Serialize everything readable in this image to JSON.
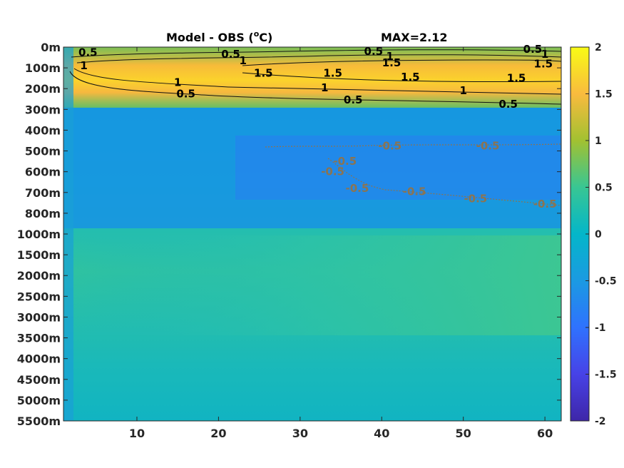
{
  "chart_data": {
    "type": "heatmap",
    "title": "Model - OBS (",
    "title_superscript": "o",
    "title_suffix": "C)",
    "max_label": "MAX=2.12",
    "colormap": "parula",
    "x": {
      "ticks": [
        10,
        20,
        30,
        40,
        50,
        60
      ],
      "range": [
        1,
        62
      ]
    },
    "y": {
      "tick_labels": [
        "0m",
        "100m",
        "200m",
        "300m",
        "400m",
        "500m",
        "600m",
        "700m",
        "800m",
        "1000m",
        "1500m",
        "2000m",
        "2500m",
        "3000m",
        "3500m",
        "4000m",
        "4500m",
        "5000m",
        "5500m"
      ],
      "direction": "down"
    },
    "colorbar": {
      "range": [
        -2,
        2
      ],
      "ticks": [
        "2",
        "1.5",
        "1",
        "0.5",
        "0",
        "-0.5",
        "-1",
        "-1.5",
        "-2"
      ]
    },
    "contour_labels_positive": [
      {
        "text": "0.5",
        "x": 4,
        "y": 0.25
      },
      {
        "text": "1",
        "x": 3.5,
        "y": 0.9
      },
      {
        "text": "0.5",
        "x": 21.5,
        "y": 0.35
      },
      {
        "text": "1",
        "x": 23,
        "y": 0.65
      },
      {
        "text": "1.5",
        "x": 25.5,
        "y": 1.25
      },
      {
        "text": "1",
        "x": 15,
        "y": 1.7
      },
      {
        "text": "0.5",
        "x": 16,
        "y": 2.25
      },
      {
        "text": "1.5",
        "x": 34,
        "y": 1.25
      },
      {
        "text": "1",
        "x": 33,
        "y": 1.95
      },
      {
        "text": "0.5",
        "x": 39,
        "y": 0.2
      },
      {
        "text": "1",
        "x": 41,
        "y": 0.45
      },
      {
        "text": "1.5",
        "x": 41.2,
        "y": 0.75
      },
      {
        "text": "1.5",
        "x": 43.5,
        "y": 1.45
      },
      {
        "text": "0.5",
        "x": 36.5,
        "y": 2.55
      },
      {
        "text": "1",
        "x": 50,
        "y": 2.1
      },
      {
        "text": "0.5",
        "x": 58.5,
        "y": 0.1
      },
      {
        "text": "1",
        "x": 60,
        "y": 0.35
      },
      {
        "text": "1.5",
        "x": 59.8,
        "y": 0.8
      },
      {
        "text": "1.5",
        "x": 56.5,
        "y": 1.5
      },
      {
        "text": "0.5",
        "x": 55.5,
        "y": 2.75
      }
    ],
    "contour_labels_negative": [
      {
        "text": "-0.5",
        "x": 35.5,
        "y": 5.5
      },
      {
        "text": "-0.5",
        "x": 34,
        "y": 6.0
      },
      {
        "text": "-0.5",
        "x": 37,
        "y": 6.8
      },
      {
        "text": "-0.5",
        "x": 41,
        "y": 4.75
      },
      {
        "text": "-0.5",
        "x": 44,
        "y": 6.95
      },
      {
        "text": "-0.5",
        "x": 53,
        "y": 4.75
      },
      {
        "text": "-0.5",
        "x": 51.5,
        "y": 7.3
      },
      {
        "text": "-0.5",
        "x": 60,
        "y": 7.55
      }
    ]
  }
}
